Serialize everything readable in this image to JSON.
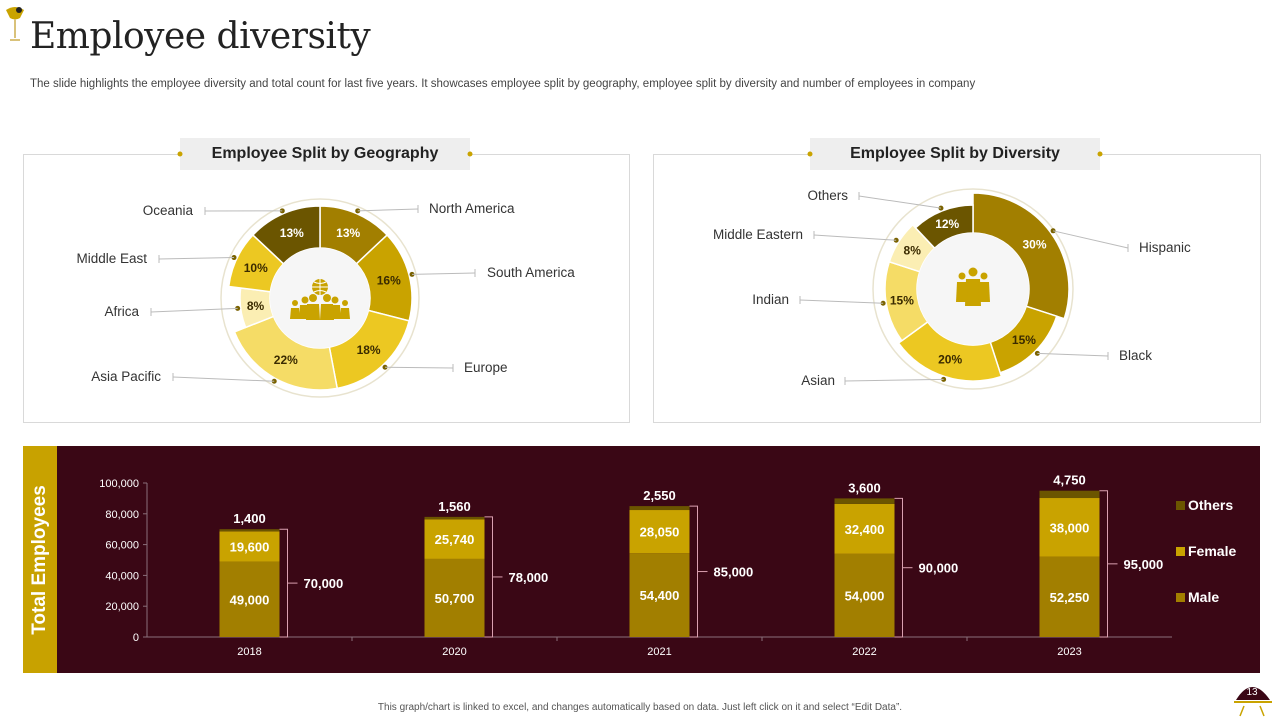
{
  "header": {
    "title": "Employee diversity",
    "subtitle": "The slide highlights the employee diversity and total count for last five years. It showcases employee split by geography, employee split by diversity and number of employees in company"
  },
  "footer": {
    "note": "This graph/chart is linked to excel, and changes automatically based on data. Just left click on it and select “Edit Data”."
  },
  "page_number": "13",
  "colors": {
    "dark_gold": "#6b5500",
    "gold": "#a27f00",
    "mustard": "#c9a300",
    "yellow": "#ecc822",
    "light_yellow": "#f5dc66",
    "cream": "#fbeeb3",
    "maroon": "#3a0715"
  },
  "chart_data": [
    {
      "type": "pie",
      "title": "Employee Split by Geography",
      "categories": [
        "North America",
        "South America",
        "Europe",
        "Asia Pacific",
        "Africa",
        "Middle East",
        "Oceania"
      ],
      "values": [
        13,
        16,
        18,
        22,
        8,
        10,
        13
      ],
      "value_labels": [
        "13%",
        "16%",
        "18%",
        "22%",
        "8%",
        "10%",
        "13%"
      ]
    },
    {
      "type": "pie",
      "title": "Employee Split by Diversity",
      "categories": [
        "Hispanic",
        "Black",
        "Asian",
        "Indian",
        "Middle Eastern",
        "Others"
      ],
      "values": [
        30,
        15,
        20,
        15,
        8,
        12
      ],
      "value_labels": [
        "30%",
        "15%",
        "20%",
        "15%",
        "8%",
        "12%"
      ]
    },
    {
      "type": "bar",
      "stacked": true,
      "title": "Total Employees",
      "categories": [
        "2018",
        "2020",
        "2021",
        "2022",
        "2023"
      ],
      "series": [
        {
          "name": "Male",
          "values": [
            49000,
            50700,
            54400,
            54000,
            52250
          ],
          "labels": [
            "49,000",
            "50,700",
            "54,400",
            "54,000",
            "52,250"
          ]
        },
        {
          "name": "Female",
          "values": [
            19600,
            25740,
            28050,
            32400,
            38000
          ],
          "labels": [
            "19,600",
            "25,740",
            "28,050",
            "32,400",
            "38,000"
          ]
        },
        {
          "name": "Others",
          "values": [
            1400,
            1560,
            2550,
            3600,
            4750
          ],
          "labels": [
            "1,400",
            "1,560",
            "2,550",
            "3,600",
            "4,750"
          ]
        }
      ],
      "totals": [
        "70,000",
        "78,000",
        "85,000",
        "90,000",
        "95,000"
      ],
      "ylim": [
        0,
        100000
      ],
      "yticks": [
        "0",
        "20,000",
        "40,000",
        "60,000",
        "80,000",
        "100,000"
      ],
      "legend": [
        "Others",
        "Female",
        "Male"
      ]
    }
  ]
}
